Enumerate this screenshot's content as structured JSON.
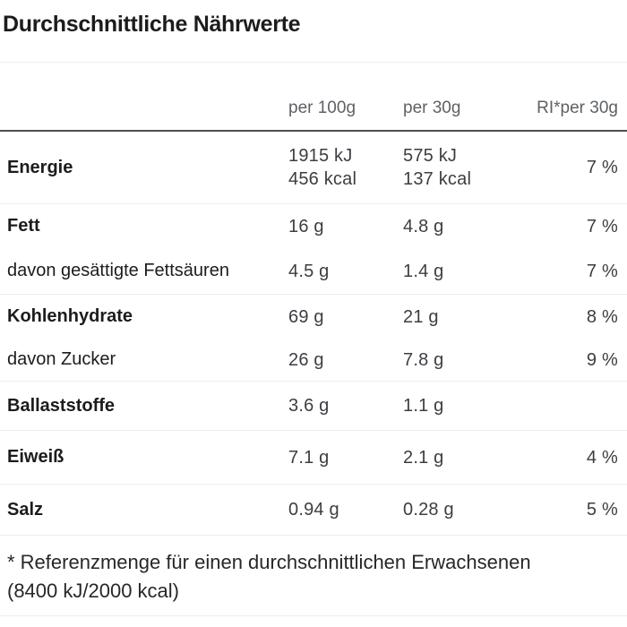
{
  "title": "Durchschnittliche Nährwerte",
  "table": {
    "header": {
      "col_100g": "per 100g",
      "col_30g": "per 30g",
      "col_ri": "RI*per 30g"
    },
    "rows": [
      {
        "label": "Energie",
        "per_100g": "1915 kJ\n456 kcal",
        "per_30g": "575 kJ\n137 kcal",
        "ri": "7 %"
      },
      {
        "label": "Fett",
        "per_100g": "16 g",
        "per_30g": "4.8 g",
        "ri": "7 %"
      },
      {
        "label": "davon gesättigte Fettsäuren",
        "per_100g": "4.5 g",
        "per_30g": "1.4 g",
        "ri": "7 %"
      },
      {
        "label": "Kohlenhydrate",
        "per_100g": "69 g",
        "per_30g": "21 g",
        "ri": "8 %"
      },
      {
        "label": "davon Zucker",
        "per_100g": "26 g",
        "per_30g": "7.8 g",
        "ri": "9 %"
      },
      {
        "label": "Ballaststoffe",
        "per_100g": "3.6 g",
        "per_30g": "1.1 g",
        "ri": ""
      },
      {
        "label": "Eiweiß",
        "per_100g": "7.1 g",
        "per_30g": "2.1 g",
        "ri": "4 %"
      },
      {
        "label": "Salz",
        "per_100g": "0.94 g",
        "per_30g": "0.28 g",
        "ri": "5 %"
      }
    ]
  },
  "footnote": "* Referenzmenge für einen durchschnittlichen Erwachsenen (8400 kJ/2000 kcal)"
}
